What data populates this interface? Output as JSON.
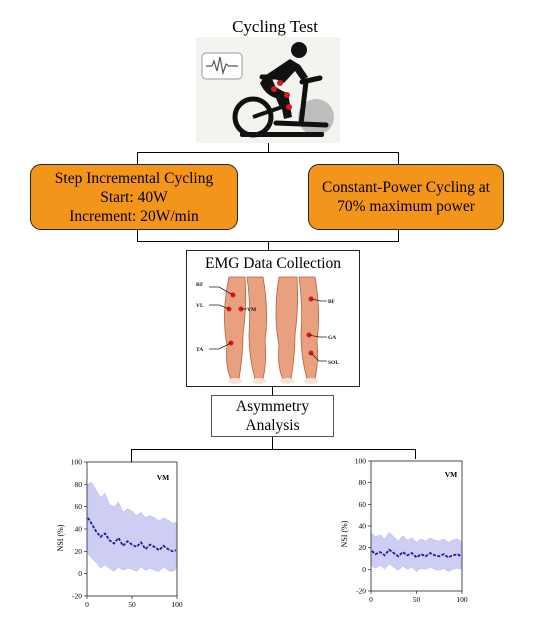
{
  "title": "Cycling Test",
  "step_box": {
    "lines": [
      "Step Incremental Cycling",
      "Start: 40W",
      "Increment: 20W/min"
    ]
  },
  "constant_box": {
    "lines": [
      "Constant-Power Cycling at",
      "70% maximum power"
    ]
  },
  "emg": {
    "title": "EMG Data Collection",
    "muscle_labels": [
      "RF",
      "VL",
      "VM",
      "TA",
      "BF",
      "GA",
      "SOL"
    ]
  },
  "asymmetry": {
    "lines": [
      "Asymmetry",
      "Analysis"
    ]
  },
  "colors": {
    "box_fill": "#f3941b",
    "band_fill": "#c9c9f5",
    "line_color": "#1c1c9c",
    "muscle_marker": "#d9181e"
  },
  "chart_data": [
    {
      "type": "line",
      "panel_label": "VM",
      "ylabel": "NSI (%)",
      "xlim": [
        0,
        100
      ],
      "ylim": [
        -20,
        100
      ],
      "xticks": [
        0,
        50,
        100
      ],
      "yticks": [
        -20,
        0,
        20,
        40,
        60,
        80,
        100
      ],
      "grid": false,
      "x": [
        1,
        5,
        10,
        15,
        20,
        25,
        30,
        35,
        40,
        45,
        50,
        55,
        60,
        65,
        70,
        75,
        80,
        85,
        90,
        95,
        99
      ],
      "mean": [
        50,
        45,
        38,
        33,
        36,
        30,
        27,
        32,
        25,
        29,
        26,
        24,
        28,
        22,
        26,
        24,
        21,
        25,
        22,
        20,
        21
      ],
      "lower": [
        18,
        14,
        10,
        5,
        8,
        5,
        2,
        6,
        3,
        5,
        4,
        2,
        6,
        3,
        5,
        3,
        2,
        6,
        3,
        2,
        4
      ],
      "upper": [
        80,
        82,
        75,
        68,
        72,
        62,
        60,
        64,
        55,
        58,
        56,
        52,
        55,
        50,
        52,
        50,
        47,
        50,
        48,
        45,
        46
      ]
    },
    {
      "type": "line",
      "panel_label": "VM",
      "ylabel": "NSI (%)",
      "xlim": [
        0,
        100
      ],
      "ylim": [
        -20,
        100
      ],
      "xticks": [
        0,
        50,
        100
      ],
      "yticks": [
        -20,
        0,
        20,
        40,
        60,
        80,
        100
      ],
      "grid": false,
      "x": [
        1,
        5,
        10,
        15,
        20,
        25,
        30,
        35,
        40,
        45,
        50,
        55,
        60,
        65,
        70,
        75,
        80,
        85,
        90,
        95,
        99
      ],
      "mean": [
        17,
        14,
        16,
        13,
        18,
        15,
        12,
        16,
        13,
        15,
        11,
        14,
        12,
        15,
        13,
        12,
        14,
        11,
        13,
        14,
        12
      ],
      "lower": [
        3,
        1,
        4,
        0,
        5,
        2,
        -1,
        3,
        0,
        2,
        -2,
        1,
        0,
        2,
        0,
        -1,
        1,
        -2,
        0,
        1,
        0
      ],
      "upper": [
        33,
        30,
        32,
        28,
        34,
        30,
        26,
        31,
        27,
        29,
        25,
        28,
        26,
        29,
        27,
        26,
        28,
        25,
        27,
        28,
        26
      ]
    }
  ]
}
